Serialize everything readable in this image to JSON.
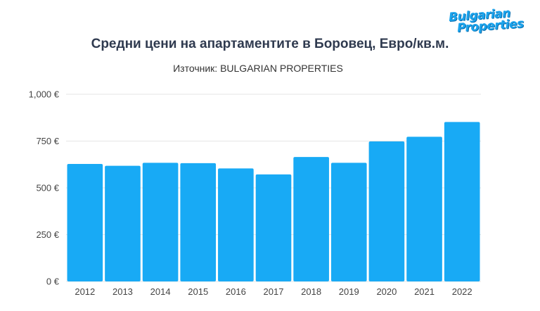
{
  "logo": {
    "line1": "Bulgarian",
    "line2": "Properties"
  },
  "colors": {
    "bar": "#18aaf5",
    "grid": "#e6e6e6",
    "title": "#2f3a4f",
    "logo": "#1aa3ec"
  },
  "chart_data": {
    "type": "bar",
    "title": "Средни цени на апартаментите в Боровец, Евро/кв.м.",
    "subtitle": "Източник: BULGARIAN PROPERTIES",
    "xlabel": "",
    "ylabel": "",
    "categories": [
      "2012",
      "2013",
      "2014",
      "2015",
      "2016",
      "2017",
      "2018",
      "2019",
      "2020",
      "2021",
      "2022"
    ],
    "values": [
      628,
      618,
      634,
      632,
      604,
      572,
      665,
      634,
      748,
      773,
      852
    ],
    "ylim": [
      0,
      1000
    ],
    "yticks": [
      0,
      250,
      500,
      750,
      1000
    ],
    "ytick_labels": [
      "0 €",
      "250 €",
      "500 €",
      "750 €",
      "1,000 €"
    ],
    "grid": true,
    "legend": "none"
  }
}
